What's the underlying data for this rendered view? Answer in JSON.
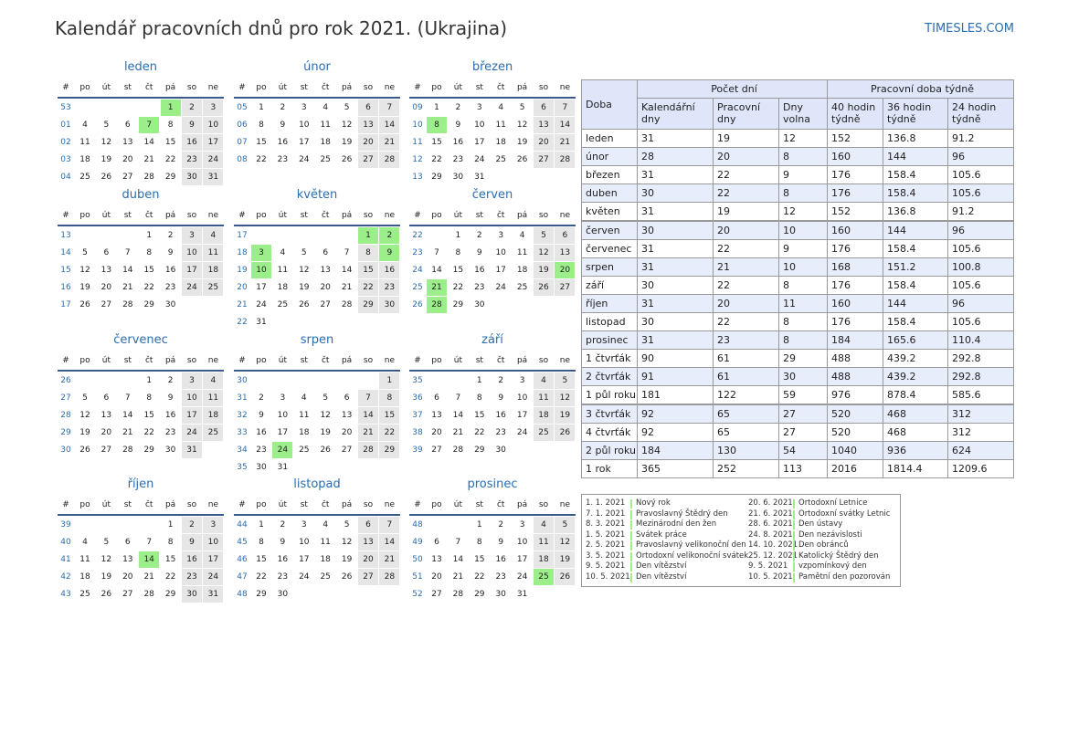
{
  "header": {
    "title": "Kalendář pracovních dnů pro rok 2021. (Ukrajina)",
    "brand": "TIMESLES.COM"
  },
  "calendar": {
    "weekday_header": [
      "#",
      "po",
      "út",
      "st",
      "čt",
      "pá",
      "so",
      "ne"
    ],
    "months": [
      {
        "name": "leden",
        "holidays": [
          1,
          7
        ],
        "weeks": [
          [
            "53",
            null,
            null,
            null,
            null,
            1,
            2,
            3
          ],
          [
            "01",
            4,
            5,
            6,
            7,
            8,
            9,
            10
          ],
          [
            "02",
            11,
            12,
            13,
            14,
            15,
            16,
            17
          ],
          [
            "03",
            18,
            19,
            20,
            21,
            22,
            23,
            24
          ],
          [
            "04",
            25,
            26,
            27,
            28,
            29,
            30,
            31
          ]
        ]
      },
      {
        "name": "únor",
        "holidays": [],
        "weeks": [
          [
            "05",
            1,
            2,
            3,
            4,
            5,
            6,
            7
          ],
          [
            "06",
            8,
            9,
            10,
            11,
            12,
            13,
            14
          ],
          [
            "07",
            15,
            16,
            17,
            18,
            19,
            20,
            21
          ],
          [
            "08",
            22,
            23,
            24,
            25,
            26,
            27,
            28
          ]
        ]
      },
      {
        "name": "březen",
        "holidays": [
          8
        ],
        "weeks": [
          [
            "09",
            1,
            2,
            3,
            4,
            5,
            6,
            7
          ],
          [
            "10",
            8,
            9,
            10,
            11,
            12,
            13,
            14
          ],
          [
            "11",
            15,
            16,
            17,
            18,
            19,
            20,
            21
          ],
          [
            "12",
            22,
            23,
            24,
            25,
            26,
            27,
            28
          ],
          [
            "13",
            29,
            30,
            31,
            null,
            null,
            null,
            null
          ]
        ]
      },
      {
        "name": "duben",
        "holidays": [],
        "weeks": [
          [
            "13",
            null,
            null,
            null,
            1,
            2,
            3,
            4
          ],
          [
            "14",
            5,
            6,
            7,
            8,
            9,
            10,
            11
          ],
          [
            "15",
            12,
            13,
            14,
            15,
            16,
            17,
            18
          ],
          [
            "16",
            19,
            20,
            21,
            22,
            23,
            24,
            25
          ],
          [
            "17",
            26,
            27,
            28,
            29,
            30,
            null,
            null
          ]
        ]
      },
      {
        "name": "květen",
        "holidays": [
          1,
          2,
          3,
          9,
          10
        ],
        "weeks": [
          [
            "17",
            null,
            null,
            null,
            null,
            null,
            1,
            2
          ],
          [
            "18",
            3,
            4,
            5,
            6,
            7,
            8,
            9
          ],
          [
            "19",
            10,
            11,
            12,
            13,
            14,
            15,
            16
          ],
          [
            "20",
            17,
            18,
            19,
            20,
            21,
            22,
            23
          ],
          [
            "21",
            24,
            25,
            26,
            27,
            28,
            29,
            30
          ],
          [
            "22",
            31,
            null,
            null,
            null,
            null,
            null,
            null
          ]
        ]
      },
      {
        "name": "červen",
        "holidays": [
          20,
          21,
          28
        ],
        "weeks": [
          [
            "22",
            null,
            1,
            2,
            3,
            4,
            5,
            6
          ],
          [
            "23",
            7,
            8,
            9,
            10,
            11,
            12,
            13
          ],
          [
            "24",
            14,
            15,
            16,
            17,
            18,
            19,
            20
          ],
          [
            "25",
            21,
            22,
            23,
            24,
            25,
            26,
            27
          ],
          [
            "26",
            28,
            29,
            30,
            null,
            null,
            null,
            null
          ]
        ]
      },
      {
        "name": "červenec",
        "holidays": [],
        "weeks": [
          [
            "26",
            null,
            null,
            null,
            1,
            2,
            3,
            4
          ],
          [
            "27",
            5,
            6,
            7,
            8,
            9,
            10,
            11
          ],
          [
            "28",
            12,
            13,
            14,
            15,
            16,
            17,
            18
          ],
          [
            "29",
            19,
            20,
            21,
            22,
            23,
            24,
            25
          ],
          [
            "30",
            26,
            27,
            28,
            29,
            30,
            31,
            null
          ]
        ]
      },
      {
        "name": "srpen",
        "holidays": [
          24
        ],
        "weeks": [
          [
            "30",
            null,
            null,
            null,
            null,
            null,
            null,
            1
          ],
          [
            "31",
            2,
            3,
            4,
            5,
            6,
            7,
            8
          ],
          [
            "32",
            9,
            10,
            11,
            12,
            13,
            14,
            15
          ],
          [
            "33",
            16,
            17,
            18,
            19,
            20,
            21,
            22
          ],
          [
            "34",
            23,
            24,
            25,
            26,
            27,
            28,
            29
          ],
          [
            "35",
            30,
            31,
            null,
            null,
            null,
            null,
            null
          ]
        ]
      },
      {
        "name": "září",
        "holidays": [],
        "weeks": [
          [
            "35",
            null,
            null,
            1,
            2,
            3,
            4,
            5
          ],
          [
            "36",
            6,
            7,
            8,
            9,
            10,
            11,
            12
          ],
          [
            "37",
            13,
            14,
            15,
            16,
            17,
            18,
            19
          ],
          [
            "38",
            20,
            21,
            22,
            23,
            24,
            25,
            26
          ],
          [
            "39",
            27,
            28,
            29,
            30,
            null,
            null,
            null
          ]
        ]
      },
      {
        "name": "říjen",
        "holidays": [
          14
        ],
        "weeks": [
          [
            "39",
            null,
            null,
            null,
            null,
            1,
            2,
            3
          ],
          [
            "40",
            4,
            5,
            6,
            7,
            8,
            9,
            10
          ],
          [
            "41",
            11,
            12,
            13,
            14,
            15,
            16,
            17
          ],
          [
            "42",
            18,
            19,
            20,
            21,
            22,
            23,
            24
          ],
          [
            "43",
            25,
            26,
            27,
            28,
            29,
            30,
            31
          ]
        ]
      },
      {
        "name": "listopad",
        "holidays": [],
        "weeks": [
          [
            "44",
            1,
            2,
            3,
            4,
            5,
            6,
            7
          ],
          [
            "45",
            8,
            9,
            10,
            11,
            12,
            13,
            14
          ],
          [
            "46",
            15,
            16,
            17,
            18,
            19,
            20,
            21
          ],
          [
            "47",
            22,
            23,
            24,
            25,
            26,
            27,
            28
          ],
          [
            "48",
            29,
            30,
            null,
            null,
            null,
            null,
            null
          ]
        ]
      },
      {
        "name": "prosinec",
        "holidays": [
          25
        ],
        "weeks": [
          [
            "48",
            null,
            null,
            1,
            2,
            3,
            4,
            5
          ],
          [
            "49",
            6,
            7,
            8,
            9,
            10,
            11,
            12
          ],
          [
            "50",
            13,
            14,
            15,
            16,
            17,
            18,
            19
          ],
          [
            "51",
            20,
            21,
            22,
            23,
            24,
            25,
            26
          ],
          [
            "52",
            27,
            28,
            29,
            30,
            31,
            null,
            null
          ]
        ]
      }
    ]
  },
  "table": {
    "row_header": "Doba",
    "group_headers": [
      "Počet dní",
      "Pracovní doba týdně"
    ],
    "columns": [
      "Kalendářní dny",
      "Pracovní dny",
      "Dny volna",
      "40 hodin týdně",
      "36 hodin týdně",
      "24 hodin týdně"
    ],
    "rows": [
      [
        "leden",
        31,
        19,
        12,
        152,
        136.8,
        91.2
      ],
      [
        "únor",
        28,
        20,
        8,
        160,
        144,
        96
      ],
      [
        "březen",
        31,
        22,
        9,
        176,
        158.4,
        105.6
      ],
      [
        "duben",
        30,
        22,
        8,
        176,
        158.4,
        105.6
      ],
      [
        "květen",
        31,
        19,
        12,
        152,
        136.8,
        91.2
      ],
      [
        "červen",
        30,
        20,
        10,
        160,
        144,
        96
      ],
      [
        "červenec",
        31,
        22,
        9,
        176,
        158.4,
        105.6
      ],
      [
        "srpen",
        31,
        21,
        10,
        168,
        151.2,
        100.8
      ],
      [
        "září",
        30,
        22,
        8,
        176,
        158.4,
        105.6
      ],
      [
        "říjen",
        31,
        20,
        11,
        160,
        144,
        96
      ],
      [
        "listopad",
        30,
        22,
        8,
        176,
        158.4,
        105.6
      ],
      [
        "prosinec",
        31,
        23,
        8,
        184,
        165.6,
        110.4
      ],
      [
        "1 čtvrťák",
        90,
        61,
        29,
        488,
        439.2,
        292.8
      ],
      [
        "2 čtvrťák",
        91,
        61,
        30,
        488,
        439.2,
        292.8
      ],
      [
        "1 půl roku",
        181,
        122,
        59,
        976,
        878.4,
        585.6
      ],
      [
        "3 čtvrťák",
        92,
        65,
        27,
        520,
        468,
        312
      ],
      [
        "4 čtvrťák",
        92,
        65,
        27,
        520,
        468,
        312
      ],
      [
        "2 půl roku",
        184,
        130,
        54,
        1040,
        936,
        624
      ],
      [
        "1 rok",
        365,
        252,
        113,
        2016,
        1814.4,
        1209.6
      ]
    ]
  },
  "holidays": [
    [
      "1. 1. 2021",
      "Nový rok"
    ],
    [
      "7. 1. 2021",
      "Pravoslavný Štědrý den"
    ],
    [
      "8. 3. 2021",
      "Mezinárodní den žen"
    ],
    [
      "1. 5. 2021",
      "Svátek práce"
    ],
    [
      "2. 5. 2021",
      "Pravoslavný velikonoční den"
    ],
    [
      "3. 5. 2021",
      "Ortodoxní velikonoční svátek"
    ],
    [
      "9. 5. 2021",
      "Den vítězství"
    ],
    [
      "10. 5. 2021",
      "Den vítězství"
    ],
    [
      "20. 6. 2021",
      "Ortodoxní Letnice"
    ],
    [
      "21. 6. 2021",
      "Ortodoxní svátky Letnic"
    ],
    [
      "28. 6. 2021",
      "Den ústavy"
    ],
    [
      "24. 8. 2021",
      "Den nezávislosti"
    ],
    [
      "14. 10. 2021",
      "Den obránců"
    ],
    [
      "25. 12. 2021",
      "Katolický Štědrý den"
    ],
    [
      "9. 5. 2021",
      "vzpomínkový den"
    ],
    [
      "10. 5. 2021",
      "Pamětní den pozorován"
    ]
  ]
}
